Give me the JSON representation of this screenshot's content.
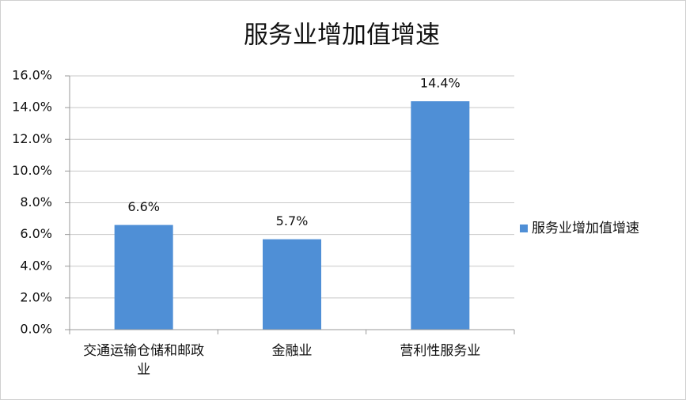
{
  "chart_data": {
    "type": "bar",
    "title": "服务业增加值增速",
    "categories": [
      "交通运输仓储和邮政业",
      "金融业",
      "营利性服务业"
    ],
    "series": [
      {
        "name": "服务业增加值增速",
        "color": "#4f8fd6",
        "values": [
          6.6,
          5.7,
          14.4
        ],
        "value_labels": [
          "6.6%",
          "5.7%",
          "14.4%"
        ]
      }
    ],
    "ylim": [
      0,
      16
    ],
    "yticks": [
      {
        "value": 0,
        "label": "0.0%"
      },
      {
        "value": 2,
        "label": "2.0%"
      },
      {
        "value": 4,
        "label": "4.0%"
      },
      {
        "value": 6,
        "label": "6.0%"
      },
      {
        "value": 8,
        "label": "8.0%"
      },
      {
        "value": 10,
        "label": "10.0%"
      },
      {
        "value": 12,
        "label": "12.0%"
      },
      {
        "value": 14,
        "label": "14.0%"
      },
      {
        "value": 16,
        "label": "16.0%"
      }
    ],
    "grid": true,
    "legend": "right"
  }
}
